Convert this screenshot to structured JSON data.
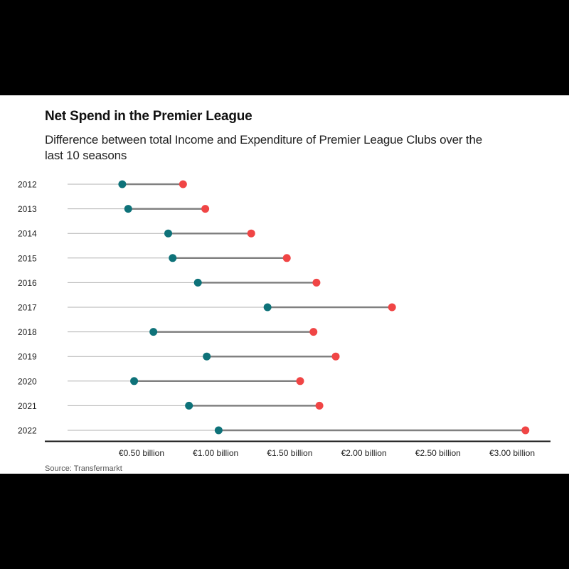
{
  "title": "Net Spend in the Premier League",
  "subtitle": "Difference between total Income and Expenditure of Premier League Clubs over the last 10 seasons",
  "source": "Source: Transfermarkt",
  "colors": {
    "income": "#0e7279",
    "expenditure": "#f04545",
    "connector": "#808080",
    "guide": "#b0b0b0",
    "axis": "#111111"
  },
  "chart_data": {
    "type": "dumbbell",
    "categories": [
      "2012",
      "2013",
      "2014",
      "2015",
      "2016",
      "2017",
      "2018",
      "2019",
      "2020",
      "2021",
      "2022"
    ],
    "series": [
      {
        "values": [
          0.37,
          0.41,
          0.68,
          0.71,
          0.88,
          1.35,
          0.58,
          0.94,
          0.45,
          0.82,
          1.02
        ]
      },
      {
        "values": [
          0.78,
          0.93,
          1.24,
          1.48,
          1.68,
          2.19,
          1.66,
          1.81,
          1.57,
          1.7,
          3.09
        ]
      }
    ],
    "x_ticks": [
      0.5,
      1.0,
      1.5,
      2.0,
      2.5,
      3.0
    ],
    "x_tick_labels": [
      "€0.50 billion",
      "€1.00 billion",
      "€1.50 billion",
      "€2.00 billion",
      "€2.50 billion",
      "€3.00 billion"
    ],
    "xlim": [
      0.0,
      3.3
    ],
    "grid": false,
    "legend": "none"
  }
}
